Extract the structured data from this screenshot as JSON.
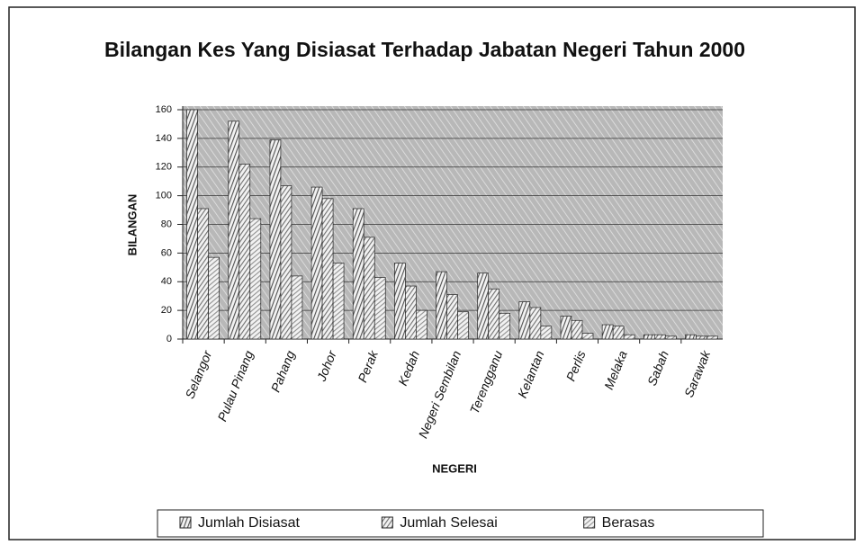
{
  "chart_data": {
    "type": "bar",
    "title": "Bilangan Kes Yang Disiasat Terhadap Jabatan Negeri Tahun 2000",
    "x_label": "NEGERI",
    "y_label": "BILANGAN",
    "categories": [
      "Selangor",
      "Pulau Pinang",
      "Pahang",
      "Johor",
      "Perak",
      "Kedah",
      "Negeri Sembilan",
      "Terengganu",
      "Kelantan",
      "Perlis",
      "Melaka",
      "Sabah",
      "Sarawak"
    ],
    "series": [
      {
        "name": "Jumlah Disiasat",
        "color": "#505050",
        "values": [
          160,
          152,
          139,
          106,
          91,
          53,
          47,
          46,
          26,
          16,
          10,
          3,
          3
        ]
      },
      {
        "name": "Jumlah Selesai",
        "color": "#707070",
        "values": [
          91,
          122,
          107,
          98,
          71,
          37,
          31,
          35,
          22,
          13,
          9,
          3,
          2
        ]
      },
      {
        "name": "Berasas",
        "color": "#909090",
        "values": [
          57,
          84,
          44,
          53,
          43,
          20,
          19,
          18,
          9,
          4,
          3,
          2,
          2
        ]
      }
    ],
    "ylim": [
      0,
      160
    ],
    "yticks": [
      0,
      20,
      40,
      60,
      80,
      100,
      120,
      140,
      160
    ],
    "grid": true,
    "legend": "bottom"
  }
}
